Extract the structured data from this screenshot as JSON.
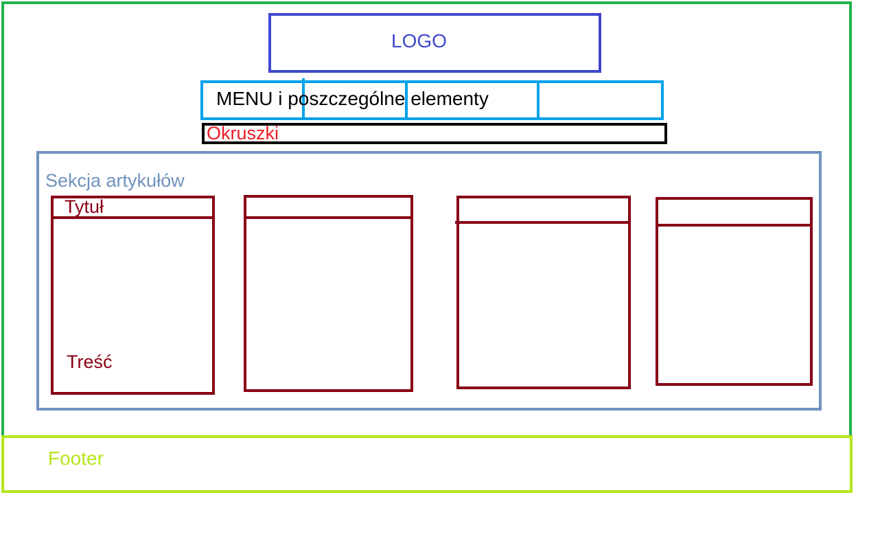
{
  "header": {
    "logo_label": "LOGO",
    "menu_label": "MENU i poszczególne elementy",
    "breadcrumbs_label": "Okruszki"
  },
  "articles": {
    "section_label": "Sekcja artykułów",
    "card_title_label": "Tytuł",
    "card_body_label": "Treść"
  },
  "footer": {
    "label": "Footer"
  },
  "colors": {
    "page_frame": "#22b14c",
    "logo": "#3f48cc",
    "menu": "#00a2e8",
    "breadcrumbs_border": "#000000",
    "breadcrumbs_text": "#ed1c24",
    "articles_section": "#7092be",
    "article_card": "#880015",
    "footer": "#b5e61d"
  }
}
